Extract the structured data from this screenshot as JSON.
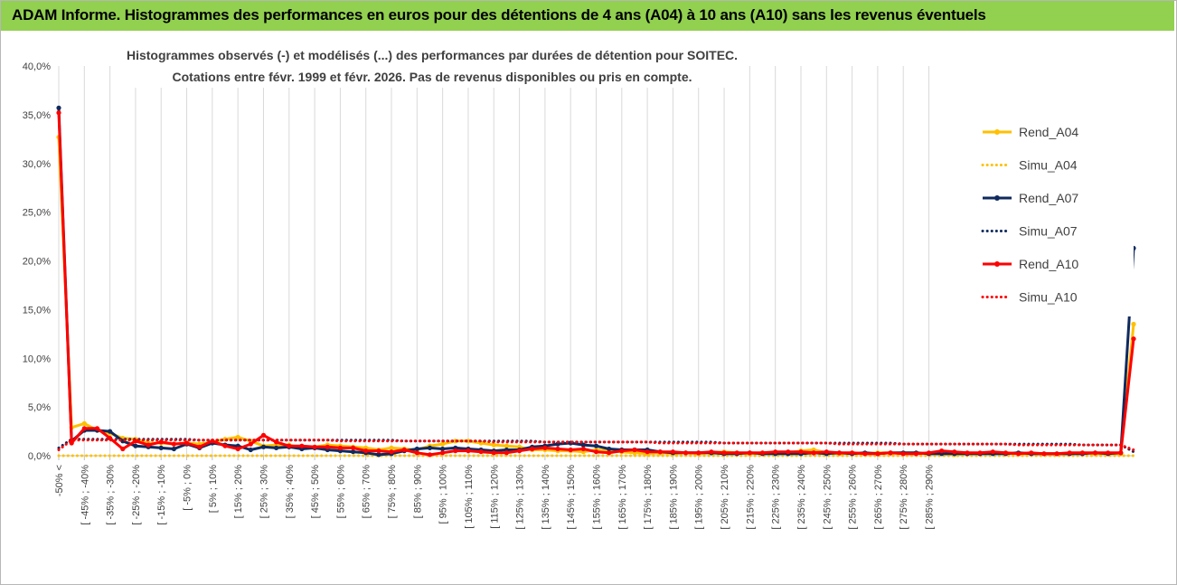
{
  "banner": {
    "title": "ADAM Informe. Histogrammes des performances en euros pour des détentions de 4 ans (A04) à 10 ans (A10) sans les revenus éventuels"
  },
  "chart_data": {
    "type": "line",
    "title_lines": [
      "Histogrammes observés (-) et modélisés (...) des performances par durées de détention pour SOITEC.",
      "Cotations entre févr. 1999 et févr. 2026. Pas de revenus disponibles ou pris en compte."
    ],
    "ylim": [
      0,
      40
    ],
    "yticks": [
      0,
      5,
      10,
      15,
      20,
      25,
      30,
      35,
      40
    ],
    "ytick_labels": [
      "0,0%",
      "5,0%",
      "10,0%",
      "15,0%",
      "20,0%",
      "25,0%",
      "30,0%",
      "35,0%",
      "40,0%"
    ],
    "x_labels": [
      "-50% <",
      "[ -45% ; -40%",
      "[ -35% ; -30%",
      "[ -25% ; -20%",
      "[ -15% ; -10%",
      "[ -5% ; 0%",
      "[ 5% ; 10%",
      "[ 15% ; 20%",
      "[ 25% ; 30%",
      "[ 35% ; 40%",
      "[ 45% ; 50%",
      "[ 55% ; 60%",
      "[ 65% ; 70%",
      "[ 75% ; 80%",
      "[ 85% ; 90%",
      "[ 95% ; 100%",
      "[ 105% ; 110%",
      "[ 115% ; 120%",
      "[ 125% ; 130%",
      "[ 135% ; 140%",
      "[ 145% ; 150%",
      "[ 155% ; 160%",
      "[ 165% ; 170%",
      "[ 175% ; 180%",
      "[ 185% ; 190%",
      "[ 195% ; 200%",
      "[ 205% ; 210%",
      "[ 215% ; 220%",
      "[ 225% ; 230%",
      "[ 235% ; 240%",
      "[ 245% ; 250%",
      "[ 255% ; 260%",
      "[ 265% ; 270%",
      "[ 275% ; 280%",
      "[ 285% ; 290%"
    ],
    "grid": "vertical",
    "legend_position": "right",
    "series": [
      {
        "name": "Rend_A04",
        "color": "#ffc000",
        "style": "solid-marker",
        "values": [
          32.7,
          2.9,
          3.3,
          2.6,
          2.3,
          1.8,
          1.7,
          1.3,
          1.3,
          1.2,
          1.3,
          1.2,
          1.4,
          1.7,
          1.9,
          1.5,
          1.0,
          1.1,
          1.1,
          0.8,
          0.9,
          1.1,
          1.0,
          0.9,
          0.8,
          0.6,
          0.8,
          0.7,
          0.6,
          1.0,
          1.2,
          1.5,
          1.5,
          1.3,
          1.1,
          1.0,
          0.9,
          0.6,
          0.6,
          0.5,
          0.5,
          0.4,
          0.6,
          0.5,
          0.4,
          0.3,
          0.2,
          0.3,
          0.2,
          0.3,
          0.2,
          0.3,
          0.4,
          0.3,
          0.2,
          0.3,
          0.2,
          0.3,
          0.5,
          0.6,
          0.3,
          0.2,
          0.3,
          0.2,
          0.3,
          0.3,
          0.2,
          0.3,
          0.2,
          0.2,
          0.1,
          0.2,
          0.2,
          0.3,
          0.3,
          0.2,
          0.2,
          0.2,
          0.2,
          0.2,
          0.3,
          0.2,
          0.2,
          0.2,
          13.5
        ]
      },
      {
        "name": "Simu_A04",
        "color": "#ffc000",
        "style": "dotted",
        "values": [
          0,
          0,
          0,
          0,
          0,
          0,
          0,
          0,
          0,
          0,
          0,
          0,
          0,
          0,
          0,
          0,
          0,
          0,
          0,
          0,
          0,
          0,
          0,
          0,
          0,
          0,
          0,
          0,
          0,
          0,
          0,
          0,
          0,
          0,
          0,
          0,
          0,
          0,
          0,
          0,
          0,
          0,
          0,
          0,
          0,
          0,
          0,
          0,
          0,
          0,
          0,
          0,
          0,
          0,
          0,
          0,
          0,
          0,
          0,
          0,
          0,
          0,
          0,
          0,
          0,
          0,
          0,
          0,
          0,
          0,
          0,
          0,
          0,
          0,
          0,
          0,
          0,
          0,
          0,
          0,
          0,
          0,
          0,
          0,
          0
        ]
      },
      {
        "name": "Rend_A07",
        "color": "#0f2a5e",
        "style": "solid-marker",
        "values": [
          35.7,
          1.5,
          2.6,
          2.6,
          2.5,
          1.5,
          1.0,
          0.9,
          0.8,
          0.7,
          1.2,
          0.8,
          1.3,
          1.1,
          1.0,
          0.6,
          0.9,
          0.8,
          0.9,
          0.7,
          0.8,
          0.6,
          0.5,
          0.4,
          0.3,
          0.1,
          0.2,
          0.5,
          0.7,
          0.8,
          0.7,
          0.8,
          0.7,
          0.6,
          0.5,
          0.6,
          0.6,
          0.9,
          1.0,
          1.2,
          1.3,
          1.1,
          1.0,
          0.7,
          0.6,
          0.6,
          0.6,
          0.4,
          0.3,
          0.3,
          0.3,
          0.3,
          0.2,
          0.2,
          0.3,
          0.2,
          0.2,
          0.2,
          0.2,
          0.3,
          0.2,
          0.3,
          0.2,
          0.3,
          0.2,
          0.3,
          0.3,
          0.3,
          0.2,
          0.2,
          0.2,
          0.2,
          0.2,
          0.2,
          0.2,
          0.3,
          0.2,
          0.2,
          0.2,
          0.2,
          0.2,
          0.3,
          0.2,
          0.3,
          21.3
        ]
      },
      {
        "name": "Simu_A07",
        "color": "#0f2a5e",
        "style": "dotted",
        "values": [
          0.8,
          1.7,
          1.7,
          1.7,
          1.7,
          1.7,
          1.7,
          1.7,
          1.7,
          1.7,
          1.7,
          1.6,
          1.6,
          1.6,
          1.6,
          1.6,
          1.6,
          1.6,
          1.6,
          1.6,
          1.6,
          1.6,
          1.6,
          1.6,
          1.6,
          1.6,
          1.6,
          1.5,
          1.5,
          1.5,
          1.5,
          1.5,
          1.5,
          1.5,
          1.5,
          1.5,
          1.5,
          1.5,
          1.4,
          1.4,
          1.4,
          1.4,
          1.4,
          1.4,
          1.4,
          1.4,
          1.4,
          1.4,
          1.4,
          1.4,
          1.4,
          1.4,
          1.3,
          1.3,
          1.3,
          1.3,
          1.3,
          1.3,
          1.3,
          1.3,
          1.3,
          1.3,
          1.3,
          1.3,
          1.3,
          1.3,
          1.2,
          1.2,
          1.2,
          1.2,
          1.2,
          1.2,
          1.2,
          1.2,
          1.2,
          1.2,
          1.2,
          1.2,
          1.2,
          1.2,
          1.1,
          1.1,
          1.1,
          1.1,
          0.4
        ]
      },
      {
        "name": "Rend_A10",
        "color": "#ff0000",
        "style": "solid-marker",
        "values": [
          35.2,
          1.3,
          2.8,
          2.8,
          1.8,
          0.7,
          1.5,
          1.1,
          1.4,
          1.2,
          1.3,
          0.9,
          1.5,
          1.0,
          0.7,
          1.2,
          2.1,
          1.4,
          1.0,
          1.0,
          0.9,
          0.9,
          0.8,
          0.8,
          0.5,
          0.5,
          0.4,
          0.6,
          0.3,
          0.1,
          0.3,
          0.5,
          0.5,
          0.4,
          0.3,
          0.3,
          0.5,
          0.7,
          0.8,
          0.7,
          0.6,
          0.7,
          0.4,
          0.3,
          0.5,
          0.6,
          0.4,
          0.4,
          0.4,
          0.3,
          0.3,
          0.4,
          0.3,
          0.3,
          0.3,
          0.3,
          0.4,
          0.4,
          0.4,
          0.3,
          0.4,
          0.3,
          0.3,
          0.2,
          0.2,
          0.3,
          0.2,
          0.2,
          0.3,
          0.5,
          0.4,
          0.3,
          0.3,
          0.4,
          0.3,
          0.2,
          0.3,
          0.2,
          0.2,
          0.3,
          0.3,
          0.3,
          0.3,
          0.3,
          12.0
        ]
      },
      {
        "name": "Simu_A10",
        "color": "#ff0000",
        "style": "dotted",
        "values": [
          0.6,
          1.6,
          1.6,
          1.6,
          1.6,
          1.6,
          1.6,
          1.6,
          1.6,
          1.6,
          1.6,
          1.6,
          1.6,
          1.6,
          1.6,
          1.6,
          1.6,
          1.6,
          1.6,
          1.6,
          1.6,
          1.6,
          1.5,
          1.5,
          1.5,
          1.5,
          1.5,
          1.5,
          1.5,
          1.5,
          1.5,
          1.5,
          1.5,
          1.5,
          1.4,
          1.4,
          1.4,
          1.4,
          1.4,
          1.4,
          1.4,
          1.4,
          1.4,
          1.4,
          1.4,
          1.4,
          1.4,
          1.3,
          1.3,
          1.3,
          1.3,
          1.3,
          1.3,
          1.3,
          1.3,
          1.3,
          1.3,
          1.3,
          1.3,
          1.3,
          1.3,
          1.2,
          1.2,
          1.2,
          1.2,
          1.2,
          1.2,
          1.2,
          1.2,
          1.2,
          1.2,
          1.2,
          1.2,
          1.2,
          1.2,
          1.1,
          1.1,
          1.1,
          1.1,
          1.1,
          1.1,
          1.1,
          1.1,
          1.1,
          0.6
        ]
      }
    ]
  }
}
